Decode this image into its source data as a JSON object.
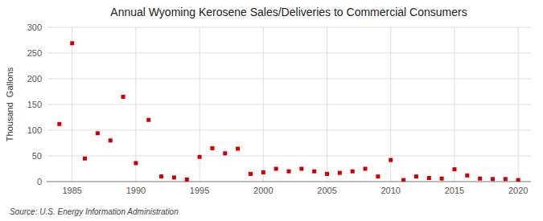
{
  "chart_data": {
    "type": "scatter",
    "title": "Annual Wyoming Kerosene Sales/Deliveries to Commercial Consumers",
    "ylabel": "Thousand  Gallons",
    "source": "Source: U.S. Energy Information Administration",
    "x": [
      1984,
      1985,
      1986,
      1987,
      1988,
      1989,
      1990,
      1991,
      1992,
      1993,
      1994,
      1995,
      1996,
      1997,
      1998,
      1999,
      2000,
      2001,
      2002,
      2003,
      2004,
      2005,
      2006,
      2007,
      2008,
      2009,
      2010,
      2011,
      2012,
      2013,
      2014,
      2015,
      2016,
      2017,
      2018,
      2019,
      2020
    ],
    "values": [
      112,
      269,
      45,
      94,
      80,
      165,
      36,
      120,
      10,
      8,
      4,
      48,
      65,
      55,
      64,
      15,
      18,
      25,
      20,
      25,
      20,
      15,
      17,
      20,
      25,
      10,
      42,
      3,
      10,
      7,
      6,
      24,
      12,
      6,
      5,
      5,
      3
    ],
    "color": "#cc0000",
    "marker": "square",
    "xlim": [
      1983,
      2021
    ],
    "ylim": [
      0,
      300
    ],
    "xticks": [
      1985,
      1990,
      1995,
      2000,
      2005,
      2010,
      2015,
      2020
    ],
    "yticks": [
      0,
      50,
      100,
      150,
      200,
      250,
      300
    ],
    "grid": true
  }
}
